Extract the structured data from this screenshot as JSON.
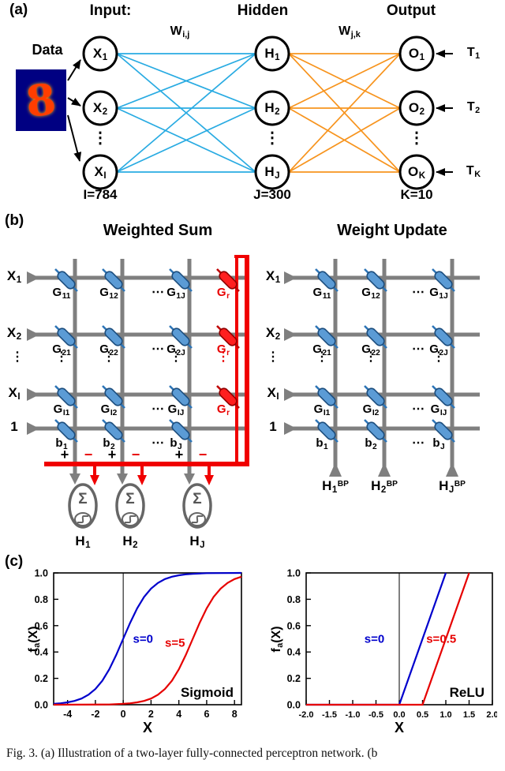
{
  "figure": {
    "caption": "Fig. 3. (a) Illustration of a two-layer fully-connected perceptron network. (b"
  },
  "panel_a": {
    "tag": "(a)",
    "input_heading": "Input:",
    "hidden_heading": "Hidden",
    "output_heading": "Output",
    "data_label": "Data",
    "digit": "8",
    "w_ih": {
      "base": "W",
      "sub": "i,j"
    },
    "w_ho": {
      "base": "W",
      "sub": "j,k"
    },
    "inputs": [
      {
        "base": "X",
        "sub": "1"
      },
      {
        "base": "X",
        "sub": "2"
      },
      {
        "base": "X",
        "sub": "I"
      }
    ],
    "hidden": [
      {
        "base": "H",
        "sub": "1"
      },
      {
        "base": "H",
        "sub": "2"
      },
      {
        "base": "H",
        "sub": "J"
      }
    ],
    "outputs": [
      {
        "base": "O",
        "sub": "1"
      },
      {
        "base": "O",
        "sub": "2"
      },
      {
        "base": "O",
        "sub": "K"
      }
    ],
    "targets": [
      {
        "base": "T",
        "sub": "1"
      },
      {
        "base": "T",
        "sub": "2"
      },
      {
        "base": "T",
        "sub": "K"
      }
    ],
    "vdots": "⋮",
    "input_count": "I=784",
    "hidden_count": "J=300",
    "output_count": "K=10"
  },
  "panel_b": {
    "tag": "(b)",
    "ws_title": "Weighted Sum",
    "wu_title": "Weight Update",
    "rows": [
      {
        "base": "X",
        "sub": "1"
      },
      {
        "base": "X",
        "sub": "2"
      },
      {
        "base": "X",
        "sub": "I"
      },
      {
        "base": "1",
        "sub": ""
      }
    ],
    "g": [
      [
        {
          "base": "G",
          "sub": "11"
        },
        {
          "base": "G",
          "sub": "12"
        },
        {
          "base": "G",
          "sub": "1J"
        }
      ],
      [
        {
          "base": "G",
          "sub": "21"
        },
        {
          "base": "G",
          "sub": "22"
        },
        {
          "base": "G",
          "sub": "2J"
        }
      ],
      [
        {
          "base": "G",
          "sub": "I1"
        },
        {
          "base": "G",
          "sub": "I2"
        },
        {
          "base": "G",
          "sub": "IJ"
        }
      ]
    ],
    "g_ref": {
      "base": "G",
      "sub": "r"
    },
    "bias": [
      {
        "base": "b",
        "sub": "1"
      },
      {
        "base": "b",
        "sub": "2"
      },
      {
        "base": "b",
        "sub": "J"
      }
    ],
    "hdots": "⋯",
    "vdots": "⋮",
    "plus": "+",
    "minus": "−",
    "sigma": "Σ",
    "h_out": [
      {
        "base": "H",
        "sub": "1"
      },
      {
        "base": "H",
        "sub": "2"
      },
      {
        "base": "H",
        "sub": "J"
      }
    ],
    "h_bp": [
      {
        "base": "H",
        "sub": "1",
        "sup": "BP"
      },
      {
        "base": "H",
        "sub": "2",
        "sup": "BP"
      },
      {
        "base": "H",
        "sub": "J",
        "sup": "BP"
      }
    ]
  },
  "panel_c": {
    "tag": "(c)"
  },
  "chart_data": [
    {
      "type": "line",
      "name": "sigmoid-activation",
      "xlabel": "X",
      "ylabel": {
        "base": "f",
        "sub": "a",
        "rest": "(X)"
      },
      "annotation": "Sigmoid",
      "xlim": [
        -5,
        8.5
      ],
      "ylim": [
        0,
        1
      ],
      "xticks": [
        -4,
        -2,
        0,
        2,
        4,
        6,
        8
      ],
      "xtick_labels": [
        "-4",
        "-2",
        "0",
        "2",
        "4",
        "6",
        "8"
      ],
      "yticks": [
        0,
        0.2,
        0.4,
        0.6,
        0.8,
        1
      ],
      "ytick_labels": [
        "0.0",
        "0.2",
        "0.4",
        "0.6",
        "0.8",
        "1.0"
      ],
      "zero_line": true,
      "grid": false,
      "series": [
        {
          "name": "s=0",
          "color": "#0000CC",
          "label": {
            "x": 0.7,
            "y": 0.47
          },
          "points": [
            [
              -5,
              0.007
            ],
            [
              -4.5,
              0.011
            ],
            [
              -4,
              0.018
            ],
            [
              -3.5,
              0.029
            ],
            [
              -3,
              0.047
            ],
            [
              -2.5,
              0.076
            ],
            [
              -2,
              0.119
            ],
            [
              -1.5,
              0.182
            ],
            [
              -1,
              0.269
            ],
            [
              -0.5,
              0.378
            ],
            [
              0,
              0.5
            ],
            [
              0.5,
              0.622
            ],
            [
              1,
              0.731
            ],
            [
              1.5,
              0.818
            ],
            [
              2,
              0.881
            ],
            [
              2.5,
              0.924
            ],
            [
              3,
              0.953
            ],
            [
              3.5,
              0.971
            ],
            [
              4,
              0.982
            ],
            [
              4.5,
              0.989
            ],
            [
              5,
              0.993
            ],
            [
              6,
              0.998
            ],
            [
              7,
              0.999
            ],
            [
              8.5,
              1.0
            ]
          ]
        },
        {
          "name": "s=5",
          "color": "#E60000",
          "label": {
            "x": 3.0,
            "y": 0.44
          },
          "points": [
            [
              -5,
              0
            ],
            [
              -1,
              0.002
            ],
            [
              0,
              0.007
            ],
            [
              0.5,
              0.011
            ],
            [
              1,
              0.018
            ],
            [
              1.5,
              0.029
            ],
            [
              2,
              0.047
            ],
            [
              2.5,
              0.076
            ],
            [
              3,
              0.119
            ],
            [
              3.5,
              0.182
            ],
            [
              4,
              0.269
            ],
            [
              4.5,
              0.378
            ],
            [
              5,
              0.5
            ],
            [
              5.5,
              0.622
            ],
            [
              6,
              0.731
            ],
            [
              6.5,
              0.818
            ],
            [
              7,
              0.881
            ],
            [
              7.5,
              0.924
            ],
            [
              8,
              0.953
            ],
            [
              8.5,
              0.971
            ]
          ]
        }
      ]
    },
    {
      "type": "line",
      "name": "relu-activation",
      "xlabel": "X",
      "ylabel": {
        "base": "f",
        "sub": "a",
        "rest": "(X)"
      },
      "annotation": "ReLU",
      "xlim": [
        -2,
        2
      ],
      "ylim": [
        0,
        1
      ],
      "xticks": [
        -2,
        -1.5,
        -1,
        -0.5,
        0,
        0.5,
        1,
        1.5,
        2
      ],
      "xtick_labels": [
        "-2.0",
        "-1.5",
        "-1.0",
        "-0.5",
        "0.0",
        "0.5",
        "1.0",
        "1.5",
        "2.0"
      ],
      "yticks": [
        0,
        0.2,
        0.4,
        0.6,
        0.8,
        1
      ],
      "ytick_labels": [
        "0.0",
        "0.2",
        "0.4",
        "0.6",
        "0.8",
        "1.0"
      ],
      "zero_line": true,
      "grid": false,
      "series": [
        {
          "name": "s=0",
          "color": "#0000CC",
          "label": {
            "x": -0.75,
            "y": 0.47
          },
          "points": [
            [
              -2,
              0
            ],
            [
              0,
              0
            ],
            [
              1,
              1
            ]
          ]
        },
        {
          "name": "s=0.5",
          "color": "#E60000",
          "label": {
            "x": 0.58,
            "y": 0.47
          },
          "points": [
            [
              -2,
              0
            ],
            [
              0.5,
              0
            ],
            [
              1.5,
              1
            ]
          ]
        }
      ]
    }
  ]
}
